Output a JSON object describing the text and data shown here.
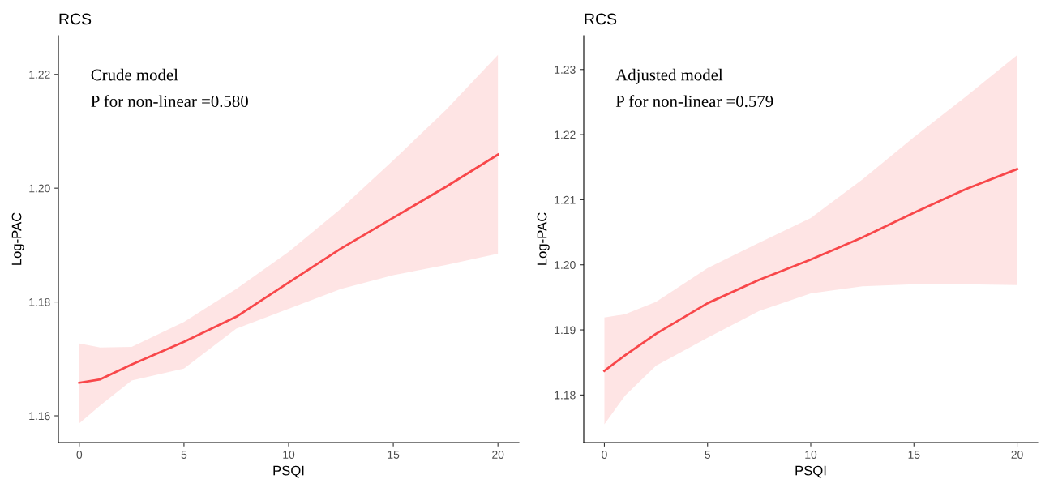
{
  "chart_data": [
    {
      "type": "line",
      "title": "RCS",
      "xlabel": "PSQI",
      "ylabel": "Log-PAC",
      "annotations": [
        "Crude model",
        "P for non-linear =0.580"
      ],
      "grid": false,
      "x": [
        0,
        1,
        2.5,
        5,
        7.5,
        10,
        12.5,
        15,
        17.5,
        20
      ],
      "xlim": [
        -1,
        21
      ],
      "xticks": [
        0,
        5,
        10,
        15,
        20
      ],
      "ylim": [
        1.1553,
        1.2268
      ],
      "yticks": [
        {
          "value": 1.16,
          "label": "1.16"
        },
        {
          "value": 1.18,
          "label": "1.18"
        },
        {
          "value": 1.2,
          "label": "1.20"
        },
        {
          "value": 1.22,
          "label": "1.22"
        }
      ],
      "series": [
        {
          "color": "#f8474a",
          "values": [
            1.1658,
            1.1664,
            1.169,
            1.173,
            1.1774,
            1.1834,
            1.1894,
            1.1948,
            1.2002,
            1.2059
          ],
          "lower": [
            1.1587,
            1.1618,
            1.1662,
            1.1683,
            1.1753,
            1.1788,
            1.1823,
            1.1847,
            1.1865,
            1.1885
          ],
          "upper": [
            1.1727,
            1.172,
            1.1721,
            1.1765,
            1.1823,
            1.1888,
            1.1964,
            1.2049,
            1.2137,
            1.2234
          ]
        }
      ]
    },
    {
      "type": "line",
      "title": "RCS",
      "xlabel": "PSQI",
      "ylabel": "Log-PAC",
      "annotations": [
        "Adjusted model",
        "P for non-linear =0.579"
      ],
      "grid": false,
      "x": [
        0,
        1,
        2.5,
        5,
        7.5,
        10,
        12.5,
        15,
        17.5,
        20
      ],
      "xlim": [
        -1,
        21
      ],
      "xticks": [
        0,
        5,
        10,
        15,
        20
      ],
      "ylim": [
        1.1727,
        1.2352
      ],
      "yticks": [
        {
          "value": 1.18,
          "label": "1.18"
        },
        {
          "value": 1.19,
          "label": "1.19"
        },
        {
          "value": 1.2,
          "label": "1.20"
        },
        {
          "value": 1.21,
          "label": "1.21"
        },
        {
          "value": 1.22,
          "label": "1.22"
        },
        {
          "value": 1.23,
          "label": "1.23"
        }
      ],
      "series": [
        {
          "color": "#f8474a",
          "values": [
            1.1837,
            1.1861,
            1.1894,
            1.1941,
            1.1977,
            1.2008,
            1.2042,
            1.208,
            1.2116,
            1.2147
          ],
          "lower": [
            1.1755,
            1.1799,
            1.1845,
            1.1888,
            1.1929,
            1.1956,
            1.1967,
            1.197,
            1.197,
            1.1969
          ],
          "upper": [
            1.1919,
            1.1924,
            1.1943,
            1.1995,
            1.2034,
            1.2072,
            1.2131,
            1.2196,
            1.2258,
            1.2322
          ]
        }
      ]
    }
  ]
}
